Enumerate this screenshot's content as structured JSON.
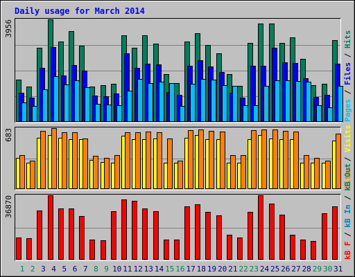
{
  "title": "Daily usage for March 2014",
  "colors": {
    "background": "#c0c0c0",
    "title": "#0000ff",
    "hits": "#00805c",
    "files": "#0000ff",
    "pages": "#00c0ff",
    "visits": "#ffff00",
    "sites": "#ff8000",
    "kbin": "#0080c0",
    "kbout": "#00805c",
    "kbf": "#ff0000",
    "weekday_label": "#000080",
    "weekend_label": "#00805c"
  },
  "chart_data": [
    {
      "type": "bar",
      "panel": "top",
      "ymax_label": "3956",
      "ylim": [
        0,
        3956
      ],
      "categories": [
        "1",
        "2",
        "3",
        "4",
        "5",
        "6",
        "7",
        "8",
        "9",
        "10",
        "11",
        "12",
        "13",
        "14",
        "15",
        "16",
        "17",
        "18",
        "19",
        "20",
        "21",
        "22",
        "23",
        "24",
        "25",
        "26",
        "27",
        "28",
        "29",
        "30",
        "31"
      ],
      "weekend_days": [
        1,
        2,
        8,
        9,
        15,
        16,
        22,
        23,
        29,
        30
      ],
      "right_label": [
        {
          "text": "Pages",
          "color": "#00c0ff"
        },
        {
          "text": " / ",
          "color": "#000000"
        },
        {
          "text": "Files",
          "color": "#0000ff"
        },
        {
          "text": " / ",
          "color": "#000000"
        },
        {
          "text": "Hits",
          "color": "#00805c"
        }
      ],
      "series": [
        {
          "name": "Hits",
          "values": [
            1619,
            1356,
            2851,
            3956,
            3088,
            3496,
            2932,
            1356,
            1423,
            1463,
            3341,
            2851,
            3339,
            3016,
            1852,
            1489,
            3088,
            3415,
            2962,
            2659,
            1834,
            1389,
            3039,
            3791,
            3791,
            3039,
            3256,
            2437,
            1426,
            1463,
            3164
          ]
        },
        {
          "name": "Files",
          "values": [
            1127,
            932,
            2084,
            2895,
            1791,
            2205,
            1977,
            1027,
            999,
            1089,
            2648,
            2084,
            2244,
            2211,
            1142,
            1038,
            2160,
            2367,
            2143,
            1912,
            1114,
            930,
            2172,
            2157,
            2873,
            2312,
            2273,
            1685,
            957,
            1030,
            2241
          ]
        },
        {
          "name": "Pages",
          "values": [
            744,
            627,
            1261,
            1770,
            1443,
            1612,
            1329,
            702,
            655,
            648,
            1192,
            1665,
            1504,
            1542,
            1502,
            625,
            1482,
            1656,
            1621,
            1411,
            1379,
            636,
            645,
            1391,
            1612,
            1603,
            1585,
            1563,
            650,
            572,
            1378
          ]
        }
      ]
    },
    {
      "type": "bar",
      "panel": "middle",
      "ymax_label": "683",
      "ylim": [
        0,
        683
      ],
      "categories": [
        "1",
        "2",
        "3",
        "4",
        "5",
        "6",
        "7",
        "8",
        "9",
        "10",
        "11",
        "12",
        "13",
        "14",
        "15",
        "16",
        "17",
        "18",
        "19",
        "20",
        "21",
        "22",
        "23",
        "24",
        "25",
        "26",
        "27",
        "28",
        "29",
        "30",
        "31"
      ],
      "right_label": [
        {
          "text": "Sites",
          "color": "#ff8000"
        },
        {
          "text": " / ",
          "color": "#000000"
        },
        {
          "text": "Visits",
          "color": "#ffff00"
        }
      ],
      "series": [
        {
          "name": "Visits",
          "values": [
            351,
            298,
            575,
            609,
            572,
            562,
            555,
            329,
            303,
            293,
            598,
            562,
            555,
            564,
            298,
            293,
            572,
            609,
            556,
            557,
            298,
            298,
            555,
            609,
            569,
            555,
            561,
            298,
            293,
            293,
            543
          ]
        },
        {
          "name": "Sites",
          "values": [
            384,
            317,
            654,
            683,
            636,
            638,
            564,
            371,
            353,
            384,
            638,
            638,
            645,
            638,
            566,
            320,
            659,
            664,
            651,
            647,
            378,
            384,
            659,
            664,
            665,
            651,
            642,
            379,
            350,
            320,
            618
          ]
        }
      ]
    },
    {
      "type": "bar",
      "panel": "bottom",
      "ymax_label": "36870",
      "ylim": [
        0,
        36870
      ],
      "categories": [
        "1",
        "2",
        "3",
        "4",
        "5",
        "6",
        "7",
        "8",
        "9",
        "10",
        "11",
        "12",
        "13",
        "14",
        "15",
        "16",
        "17",
        "18",
        "19",
        "20",
        "21",
        "22",
        "23",
        "24",
        "25",
        "26",
        "27",
        "28",
        "29",
        "30",
        "31"
      ],
      "right_label": [
        {
          "text": "kB F",
          "color": "#ff0000"
        },
        {
          "text": " / ",
          "color": "#000000"
        },
        {
          "text": "kB In",
          "color": "#0080c0"
        },
        {
          "text": " / ",
          "color": "#000000"
        },
        {
          "text": "kB Out",
          "color": "#00805c"
        }
      ],
      "series": [
        {
          "name": "kB F",
          "values": [
            12800,
            12200,
            28300,
            36870,
            29500,
            29500,
            24800,
            11400,
            11200,
            27800,
            34600,
            33700,
            29500,
            27800,
            11400,
            11600,
            30700,
            31600,
            27300,
            25500,
            14300,
            12800,
            27300,
            36870,
            32100,
            25800,
            14300,
            11600,
            10900,
            26600,
            30700
          ]
        }
      ]
    }
  ]
}
